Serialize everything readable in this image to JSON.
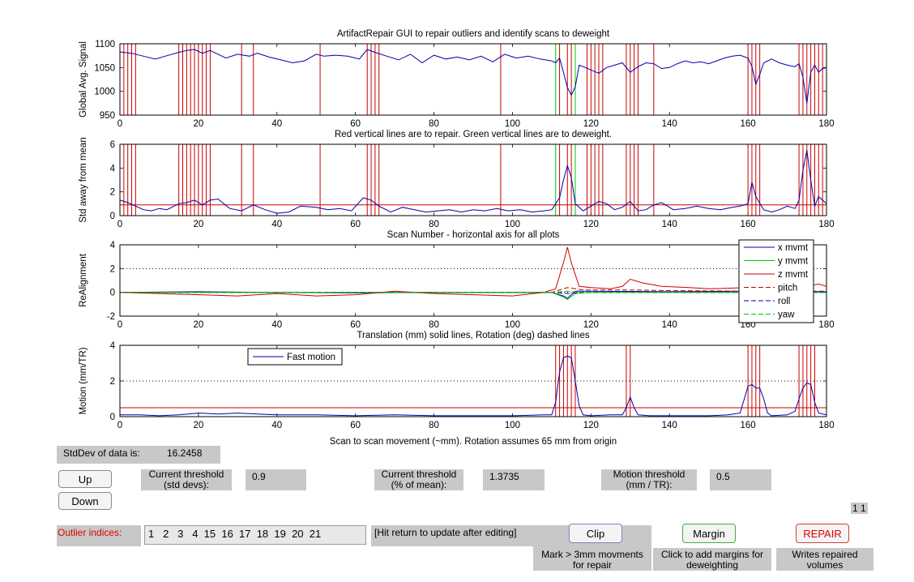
{
  "plots": [
    {
      "title": "ArtifactRepair GUI to repair outliers and identify scans to deweight",
      "ylabel": "Global Avg. Signal",
      "ylim": [
        950,
        1100
      ],
      "yticks": [
        950,
        1000,
        1050,
        1100
      ],
      "xlim": [
        0,
        180
      ],
      "xticks": [
        0,
        20,
        40,
        60,
        80,
        100,
        120,
        140,
        160,
        180
      ]
    },
    {
      "title": "Red vertical lines are to repair. Green vertical lines are to deweight.",
      "ylabel": "Std away from mean",
      "ylim": [
        0,
        6
      ],
      "yticks": [
        0,
        2,
        4,
        6
      ],
      "xlim": [
        0,
        180
      ],
      "xticks": [
        0,
        20,
        40,
        60,
        80,
        100,
        120,
        140,
        160,
        180
      ]
    },
    {
      "title": "Scan Number  -  horizontal axis for all plots",
      "ylabel": "ReAlignment",
      "ylim": [
        -2,
        4
      ],
      "yticks": [
        -2,
        0,
        2,
        4
      ],
      "xlim": [
        0,
        180
      ],
      "xticks": [
        0,
        20,
        40,
        60,
        80,
        100,
        120,
        140,
        160,
        180
      ]
    },
    {
      "title": "Translation (mm) solid lines, Rotation (deg) dashed lines",
      "ylabel": "Motion (mm/TR)",
      "ylim": [
        0,
        4
      ],
      "yticks": [
        0,
        2,
        4
      ],
      "xlim": [
        0,
        180
      ],
      "xticks": [
        0,
        20,
        40,
        60,
        80,
        100,
        120,
        140,
        160,
        180
      ]
    }
  ],
  "bottom_caption": "Scan to scan movement (~mm). Rotation assumes 65 mm from origin",
  "legend_realign": [
    {
      "label": "x mvmt",
      "color": "#0000aa",
      "dash": false
    },
    {
      "label": "y mvmt",
      "color": "#00cc00",
      "dash": false
    },
    {
      "label": "z mvmt",
      "color": "#cc0000",
      "dash": false
    },
    {
      "label": "pitch",
      "color": "#cc0000",
      "dash": true
    },
    {
      "label": "roll",
      "color": "#0000aa",
      "dash": true
    },
    {
      "label": "yaw",
      "color": "#00cc00",
      "dash": true
    }
  ],
  "legend_motion": {
    "label": "Fast motion",
    "color": "#0000aa"
  },
  "chart_data": [
    {
      "type": "line",
      "title": "ArtifactRepair GUI to repair outliers and identify scans to deweight",
      "ylabel": "Global Avg. Signal",
      "xlim": [
        0,
        180
      ],
      "ylim": [
        950,
        1100
      ],
      "series": [
        {
          "color": "#0000aa",
          "x": [
            0,
            3,
            6,
            9,
            12,
            15,
            17,
            19,
            21,
            23,
            25,
            27,
            30,
            33,
            35,
            38,
            41,
            44,
            47,
            50,
            52,
            55,
            58,
            61,
            63,
            65,
            68,
            71,
            74,
            77,
            80,
            83,
            86,
            89,
            92,
            95,
            98,
            101,
            104,
            107,
            110,
            111,
            112,
            113,
            114,
            115,
            116,
            117,
            118,
            120,
            122,
            124,
            126,
            128,
            130,
            132,
            134,
            136,
            138,
            140,
            142,
            144,
            146,
            148,
            150,
            152,
            154,
            156,
            158,
            160,
            161,
            162,
            163,
            164,
            166,
            168,
            170,
            172,
            173,
            174,
            175,
            176,
            177,
            178,
            179,
            180
          ],
          "y": [
            1083,
            1080,
            1074,
            1068,
            1075,
            1082,
            1086,
            1088,
            1080,
            1086,
            1078,
            1070,
            1078,
            1074,
            1080,
            1072,
            1066,
            1060,
            1064,
            1078,
            1074,
            1076,
            1074,
            1068,
            1088,
            1082,
            1074,
            1066,
            1078,
            1060,
            1076,
            1068,
            1072,
            1066,
            1074,
            1062,
            1078,
            1070,
            1074,
            1068,
            1064,
            1060,
            1070,
            1040,
            1008,
            992,
            1010,
            1055,
            1052,
            1045,
            1038,
            1050,
            1055,
            1060,
            1040,
            1052,
            1060,
            1058,
            1048,
            1050,
            1058,
            1064,
            1060,
            1062,
            1058,
            1064,
            1070,
            1074,
            1076,
            1070,
            1052,
            1015,
            1035,
            1060,
            1068,
            1060,
            1055,
            1052,
            1058,
            1030,
            975,
            1040,
            1055,
            1040,
            1048,
            1050
          ]
        }
      ]
    },
    {
      "type": "line",
      "title": "Red vertical lines are to repair. Green vertical lines are to deweight.",
      "ylabel": "Std away from mean",
      "xlim": [
        0,
        180
      ],
      "ylim": [
        0,
        6
      ],
      "series": [
        {
          "color": "#0000aa",
          "x": [
            0,
            2,
            4,
            6,
            8,
            10,
            12,
            15,
            17,
            19,
            21,
            23,
            25,
            28,
            31,
            34,
            37,
            40,
            43,
            46,
            50,
            53,
            56,
            59,
            62,
            64,
            66,
            69,
            72,
            75,
            78,
            81,
            84,
            87,
            90,
            93,
            96,
            99,
            102,
            105,
            108,
            110,
            112,
            113,
            114,
            115,
            116,
            118,
            120,
            122,
            124,
            126,
            128,
            130,
            132,
            134,
            136,
            138,
            141,
            144,
            147,
            150,
            153,
            156,
            158,
            160,
            161,
            162,
            164,
            166,
            168,
            170,
            172,
            173,
            174,
            175,
            176,
            177,
            178,
            180
          ],
          "y": [
            1.3,
            1.1,
            0.8,
            0.5,
            0.4,
            0.6,
            0.5,
            1.0,
            1.1,
            1.3,
            0.9,
            1.3,
            1.4,
            0.6,
            0.4,
            0.9,
            0.5,
            0.2,
            0.3,
            0.8,
            0.7,
            0.5,
            0.6,
            0.4,
            1.5,
            1.3,
            0.8,
            0.3,
            0.7,
            0.5,
            0.3,
            0.4,
            0.5,
            0.3,
            0.5,
            0.4,
            0.6,
            0.4,
            0.5,
            0.3,
            0.4,
            0.5,
            1.5,
            3.0,
            4.2,
            3.2,
            1.0,
            0.4,
            0.8,
            1.2,
            1.0,
            0.5,
            0.7,
            1.2,
            0.4,
            0.5,
            0.9,
            1.1,
            0.5,
            0.6,
            0.8,
            0.6,
            0.5,
            0.7,
            0.8,
            1.0,
            2.8,
            1.6,
            0.5,
            0.3,
            0.5,
            0.8,
            0.6,
            1.3,
            3.8,
            5.5,
            3.0,
            0.8,
            1.6,
            1.0
          ]
        }
      ]
    },
    {
      "type": "line",
      "title": "Scan Number  -  horizontal axis for all plots",
      "ylabel": "ReAlignment",
      "xlim": [
        0,
        180
      ],
      "ylim": [
        -2,
        4
      ],
      "series": [
        {
          "name": "x mvmt",
          "color": "#0000aa",
          "x": [
            0,
            20,
            40,
            60,
            80,
            100,
            110,
            113,
            114,
            116,
            120,
            140,
            160,
            180
          ],
          "y": [
            0,
            0.05,
            0,
            -0.05,
            0,
            0,
            0,
            -0.3,
            -0.5,
            0.1,
            0.1,
            0.05,
            0.1,
            0.05
          ]
        },
        {
          "name": "y mvmt",
          "color": "#00cc00",
          "x": [
            0,
            20,
            40,
            60,
            80,
            100,
            110,
            113,
            114,
            116,
            120,
            140,
            160,
            180
          ],
          "y": [
            0,
            0,
            0,
            0,
            0,
            0,
            0,
            -0.4,
            -0.6,
            -0.1,
            0,
            0,
            0,
            0
          ]
        },
        {
          "name": "z mvmt",
          "color": "#cc0000",
          "x": [
            0,
            10,
            20,
            30,
            40,
            50,
            60,
            70,
            80,
            90,
            100,
            108,
            111,
            113,
            114,
            115,
            117,
            120,
            125,
            128,
            130,
            133,
            138,
            145,
            150,
            160,
            170,
            178,
            180
          ],
          "y": [
            0,
            -0.1,
            -0.2,
            -0.3,
            -0.1,
            -0.3,
            -0.2,
            0.1,
            -0.1,
            -0.2,
            -0.3,
            0,
            0.3,
            2.5,
            3.8,
            2.5,
            0.5,
            0.4,
            0.3,
            0.5,
            1.1,
            0.8,
            0.5,
            0.4,
            0.3,
            0.4,
            0.2,
            0.7,
            0.5
          ]
        },
        {
          "name": "pitch",
          "color": "#cc0000",
          "dash": true,
          "x": [
            0,
            60,
            110,
            114,
            118,
            130,
            140,
            160,
            180
          ],
          "y": [
            0,
            0,
            0,
            0.4,
            0.2,
            0.2,
            0.15,
            0.1,
            0.1
          ]
        },
        {
          "name": "roll",
          "color": "#0000aa",
          "dash": true,
          "x": [
            0,
            60,
            110,
            114,
            118,
            140,
            160,
            180
          ],
          "y": [
            0,
            0,
            0,
            -0.1,
            0,
            0,
            0,
            0
          ]
        },
        {
          "name": "yaw",
          "color": "#00cc00",
          "dash": true,
          "x": [
            0,
            60,
            110,
            114,
            118,
            140,
            160,
            180
          ],
          "y": [
            0,
            0,
            0,
            0.1,
            0,
            0,
            0,
            0
          ]
        }
      ]
    },
    {
      "type": "line",
      "title": "Translation (mm) solid lines, Rotation (deg) dashed lines",
      "ylabel": "Motion (mm/TR)",
      "xlim": [
        0,
        180
      ],
      "ylim": [
        0,
        4
      ],
      "series": [
        {
          "name": "Fast motion",
          "color": "#0000aa",
          "x": [
            0,
            5,
            10,
            15,
            20,
            25,
            30,
            35,
            40,
            50,
            60,
            70,
            80,
            90,
            100,
            108,
            110,
            111,
            112,
            113,
            114,
            115,
            116,
            117,
            118,
            120,
            125,
            128,
            129,
            130,
            131,
            132,
            135,
            140,
            145,
            150,
            155,
            158,
            160,
            161,
            162,
            163,
            164,
            165,
            166,
            170,
            172,
            173,
            174,
            175,
            176,
            177,
            178,
            180
          ],
          "y": [
            0.1,
            0.1,
            0.05,
            0.1,
            0.2,
            0.15,
            0.2,
            0.15,
            0.1,
            0.1,
            0.05,
            0.1,
            0.05,
            0.05,
            0.05,
            0.1,
            0.1,
            0.8,
            2.5,
            3.3,
            3.4,
            3.3,
            2.0,
            0.6,
            0.1,
            0.05,
            0.1,
            0.1,
            0.5,
            1.1,
            0.5,
            0.1,
            0.05,
            0.05,
            0.05,
            0.05,
            0.1,
            0.2,
            1.7,
            1.8,
            1.6,
            1.6,
            1.0,
            0.2,
            0.05,
            0.1,
            0.3,
            1.0,
            1.6,
            1.9,
            1.8,
            0.8,
            0.2,
            0.1
          ]
        }
      ]
    }
  ],
  "repair_lines": [
    1,
    2,
    3,
    4,
    15,
    16,
    17,
    18,
    19,
    20,
    21,
    22,
    23,
    31,
    34,
    51,
    63,
    64,
    65,
    66,
    97,
    112,
    114,
    115,
    119,
    120,
    121,
    122,
    123,
    129,
    130,
    131,
    132,
    136,
    160,
    161,
    162,
    163,
    173,
    174,
    175,
    176,
    177,
    178,
    179
  ],
  "deweight_lines": [
    111,
    116
  ],
  "motion_repair_lines": [
    111,
    112,
    113,
    114,
    115,
    116,
    129,
    130,
    160,
    161,
    162,
    163,
    173,
    174,
    175,
    176,
    177
  ],
  "thresholds": {
    "std_line": 0.9,
    "motion_line": 0.5,
    "dotted_realign": 2,
    "dotted_motion": 2
  },
  "controls": {
    "stddev_label": "StdDev of data is:",
    "stddev_value": "16.2458",
    "up_label": "Up",
    "down_label": "Down",
    "current_threshold_std_label": "Current threshold\n(std devs):",
    "current_threshold_std_value": "0.9",
    "current_threshold_pct_label": "Current threshold\n(% of mean):",
    "current_threshold_pct_value": "1.3735",
    "motion_threshold_label": "Motion threshold\n(mm / TR):",
    "motion_threshold_value": "0.5",
    "corner_value": "1 1",
    "outlier_label": "Outlier indices:",
    "outlier_value": "1   2   3   4  15  16  17  18  19  20  21",
    "hint_text": "[Hit return to update after editing]",
    "clip_label": "Clip",
    "clip_hint": "Mark > 3mm movments\nfor repair",
    "margin_label": "Margin",
    "margin_hint": "Click to add margins for\ndeweighting",
    "repair_label": "REPAIR",
    "repair_hint": "Writes repaired\nvolumes"
  }
}
